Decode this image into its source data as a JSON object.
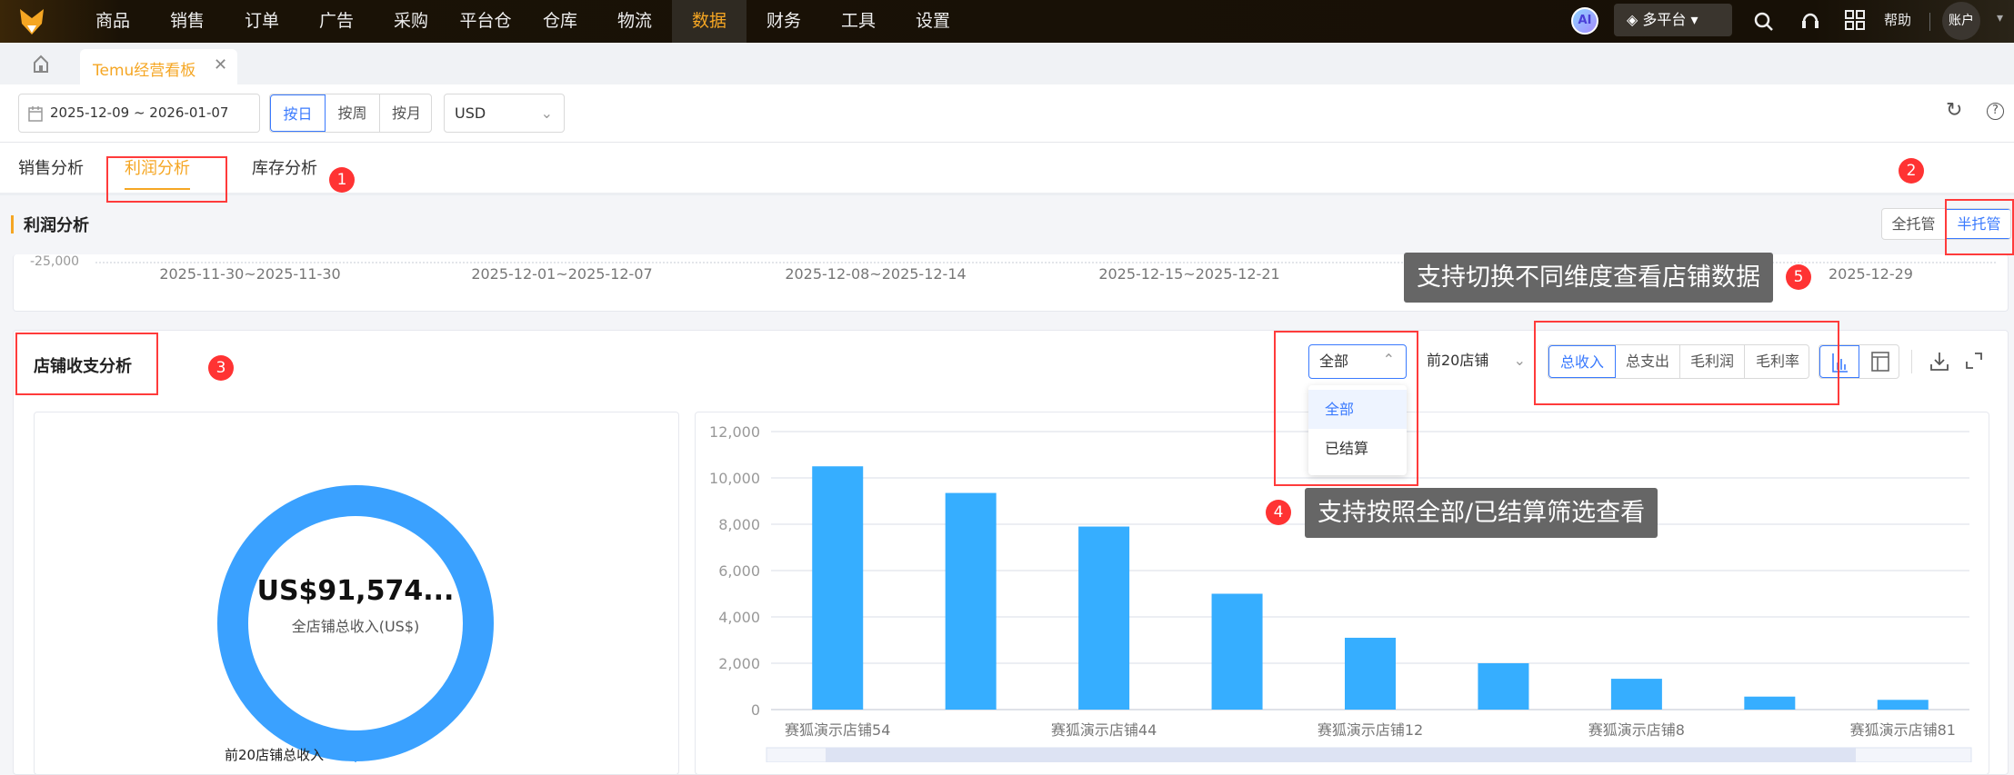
{
  "nav": {
    "items": [
      "商品",
      "销售",
      "订单",
      "广告",
      "采购",
      "平台仓",
      "仓库",
      "物流",
      "数据",
      "财务",
      "工具",
      "设置"
    ],
    "active": "数据",
    "ai": "AI",
    "platform": "多平台",
    "help": "帮助",
    "account": "账户"
  },
  "tabs": {
    "current": "Temu经营看板"
  },
  "toolbar": {
    "date_range": "2025-12-09 ~ 2026-01-07",
    "granularity": [
      "按日",
      "按周",
      "按月"
    ],
    "granularity_selected": "按日",
    "currency": "USD"
  },
  "subtabs": {
    "items": [
      "销售分析",
      "利润分析",
      "库存分析"
    ],
    "active": "利润分析"
  },
  "profit": {
    "title": "利润分析",
    "modes": [
      "全托管",
      "半托管"
    ],
    "mode_selected": "半托管",
    "y_tick": "-25,000",
    "x_labels": [
      "2025-11-30~2025-11-30",
      "2025-12-01~2025-12-07",
      "2025-12-08~2025-12-14",
      "2025-12-15~2025-12-21",
      "2025-12-29"
    ]
  },
  "annotations": {
    "b1": "1",
    "b2": "2",
    "b3": "3",
    "b4": "4",
    "b5": "5",
    "tip5": "支持切换不同维度查看店铺数据",
    "tip4": "支持按照全部/已结算筛选查看"
  },
  "store": {
    "title": "店铺收支分析",
    "filter": "全部",
    "filter_options": [
      "全部",
      "已结算"
    ],
    "top": "前20店铺",
    "metrics": [
      "总收入",
      "总支出",
      "毛利润",
      "毛利率"
    ],
    "metric_selected": "总收入",
    "view": [
      "bar-chart-icon",
      "table-icon"
    ]
  },
  "donut": {
    "value": "US$91,574...",
    "caption": "全店铺总收入(US$)",
    "label": "前20店铺总收入",
    "color": "#3aa1ff"
  },
  "chart_data": {
    "type": "bar",
    "categories": [
      "赛狐演示店铺54",
      "",
      "赛狐演示店铺44",
      "",
      "赛狐演示店铺12",
      "",
      "赛狐演示店铺8",
      "",
      "赛狐演示店铺81"
    ],
    "values": [
      10500,
      9350,
      7900,
      5000,
      3100,
      2000,
      1330,
      560,
      420
    ],
    "yticks": [
      "0",
      "2,000",
      "4,000",
      "6,000",
      "8,000",
      "10,000",
      "12,000"
    ],
    "ylim": [
      0,
      12000
    ],
    "grid": true,
    "color": "#36aeff"
  }
}
